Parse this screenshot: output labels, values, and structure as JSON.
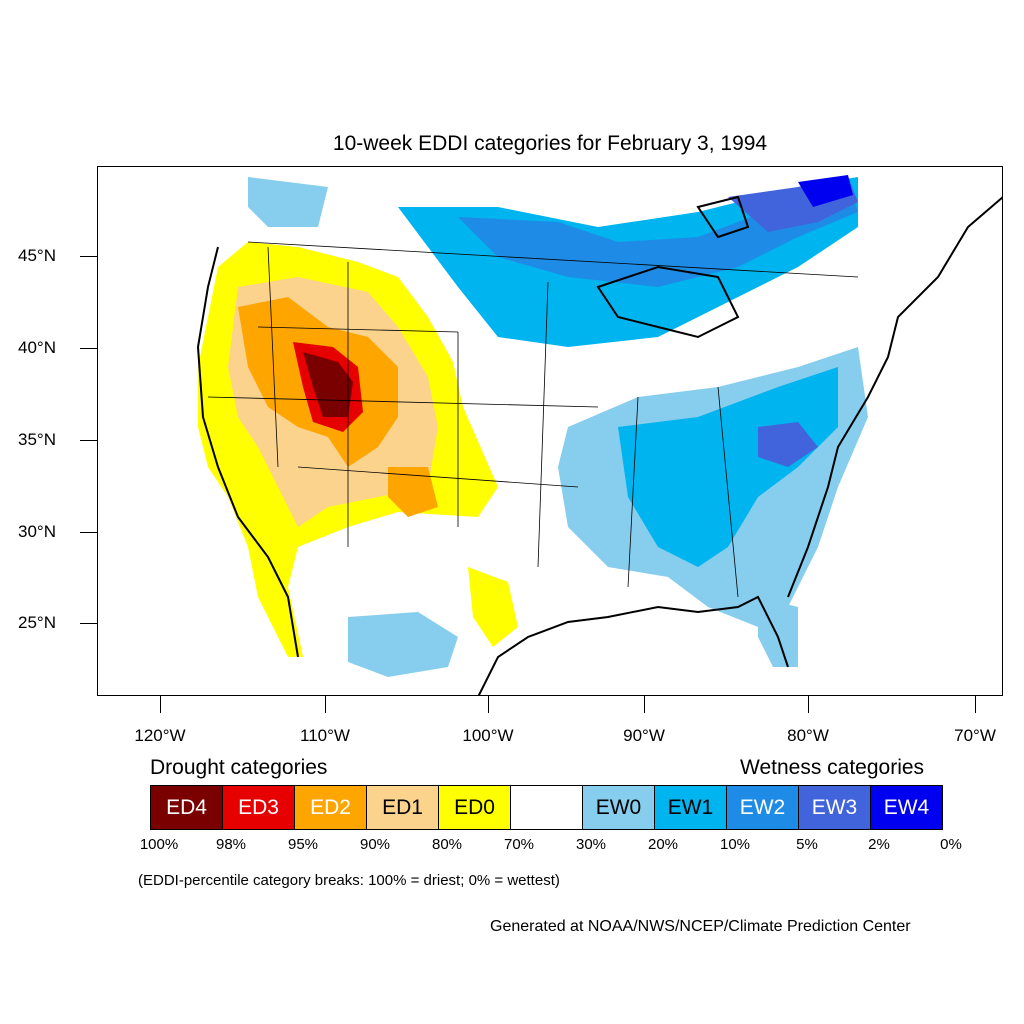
{
  "title": "10-week EDDI categories for February 3, 1994",
  "map": {
    "lat_labels": [
      "45°N",
      "40°N",
      "35°N",
      "30°N",
      "25°N"
    ],
    "lon_labels": [
      "120°W",
      "110°W",
      "100°W",
      "90°W",
      "80°W",
      "70°W"
    ]
  },
  "legend": {
    "drought_heading": "Drought categories",
    "wetness_heading": "Wetness categories",
    "categories": [
      {
        "label": "ED4",
        "color": "#7a0000",
        "text_color": "#ffffff"
      },
      {
        "label": "ED3",
        "color": "#e60000",
        "text_color": "#ffffff"
      },
      {
        "label": "ED2",
        "color": "#ffa500",
        "text_color": "#ffffff"
      },
      {
        "label": "ED1",
        "color": "#fcd38d",
        "text_color": "#000000"
      },
      {
        "label": "ED0",
        "color": "#ffff00",
        "text_color": "#000000"
      },
      {
        "label": "",
        "color": "#ffffff",
        "text_color": "#000000"
      },
      {
        "label": "EW0",
        "color": "#87cdee",
        "text_color": "#000000"
      },
      {
        "label": "EW1",
        "color": "#00b4f0",
        "text_color": "#000000"
      },
      {
        "label": "EW2",
        "color": "#1e8ce6",
        "text_color": "#ffffff"
      },
      {
        "label": "EW3",
        "color": "#4164dc",
        "text_color": "#ffffff"
      },
      {
        "label": "EW4",
        "color": "#0000f0",
        "text_color": "#ffffff"
      }
    ],
    "breaks": [
      "100%",
      "98%",
      "95%",
      "90%",
      "80%",
      "70%",
      "30%",
      "20%",
      "10%",
      "5%",
      "2%",
      "0%"
    ],
    "note": "(EDDI-percentile category breaks: 100% = driest; 0% = wettest)"
  },
  "credit": "Generated at NOAA/NWS/NCEP/Climate Prediction Center"
}
